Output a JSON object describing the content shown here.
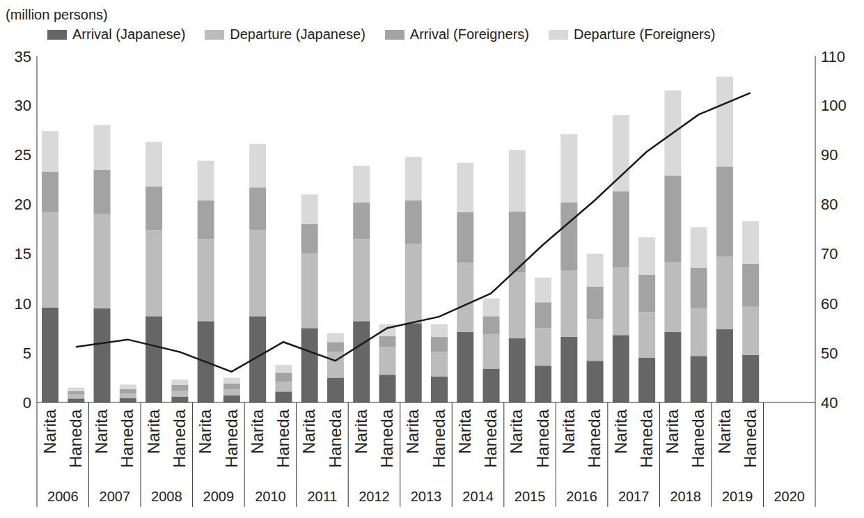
{
  "chart_data": {
    "type": "bar",
    "y_label": "(million persons)",
    "stacked": true,
    "legend": "top",
    "categories": [
      "Narita",
      "Haneda",
      "Narita",
      "Haneda",
      "Narita",
      "Haneda",
      "Narita",
      "Haneda",
      "Narita",
      "Haneda",
      "Narita",
      "Haneda",
      "Narita",
      "Haneda",
      "Narita",
      "Haneda",
      "Narita",
      "Haneda",
      "Narita",
      "Haneda",
      "Narita",
      "Haneda",
      "Narita",
      "Haneda",
      "Narita",
      "Haneda",
      "Narita",
      "Haneda",
      null,
      null
    ],
    "groups": [
      "2006",
      "2007",
      "2008",
      "2009",
      "2010",
      "2011",
      "2012",
      "2013",
      "2014",
      "2015",
      "2016",
      "2017",
      "2018",
      "2019",
      "2020"
    ],
    "series": [
      {
        "name": "Arrival (Japanese)",
        "color": "#666666",
        "values": [
          9.6,
          0.4,
          9.5,
          0.45,
          8.7,
          0.6,
          8.2,
          0.7,
          8.7,
          1.1,
          7.5,
          2.5,
          8.2,
          2.8,
          8.0,
          2.6,
          7.1,
          3.4,
          6.5,
          3.7,
          6.6,
          4.2,
          6.8,
          4.5,
          7.1,
          4.7,
          7.4,
          4.8,
          null,
          null
        ]
      },
      {
        "name": "Departure (Japanese)",
        "color": "#bcbcbc",
        "values": [
          9.6,
          0.4,
          9.5,
          0.45,
          8.7,
          0.6,
          8.3,
          0.6,
          8.7,
          1.0,
          7.5,
          2.6,
          8.3,
          2.8,
          8.0,
          2.5,
          7.0,
          3.5,
          6.6,
          3.8,
          6.7,
          4.2,
          6.8,
          4.6,
          7.1,
          4.8,
          7.3,
          4.9,
          null,
          null
        ]
      },
      {
        "name": "Arrival (Foreigners)",
        "color": "#a3a3a3",
        "values": [
          4.1,
          0.35,
          4.5,
          0.45,
          4.4,
          0.55,
          3.9,
          0.6,
          4.3,
          0.9,
          3.0,
          1.0,
          3.7,
          1.1,
          4.4,
          1.5,
          5.1,
          1.8,
          6.2,
          2.6,
          6.9,
          3.3,
          7.7,
          3.8,
          8.7,
          4.1,
          9.1,
          4.3,
          null,
          null
        ]
      },
      {
        "name": "Departure (Foreigners)",
        "color": "#d9d9d9",
        "values": [
          4.1,
          0.35,
          4.5,
          0.45,
          4.5,
          0.55,
          4.0,
          0.6,
          4.4,
          0.8,
          3.0,
          0.9,
          3.7,
          1.2,
          4.4,
          1.3,
          5.0,
          1.8,
          6.2,
          2.5,
          6.9,
          3.3,
          7.7,
          3.8,
          8.6,
          4.1,
          9.1,
          4.3,
          null,
          null
        ]
      },
      {
        "type": "line",
        "color": "#1a1a1a",
        "axis": "y2",
        "values": [
          null,
          51.2,
          null,
          52.7,
          null,
          50.2,
          null,
          46.2,
          null,
          52.2,
          null,
          48.4,
          null,
          55.0,
          null,
          57.3,
          null,
          62.0,
          null,
          71.8,
          null,
          80.8,
          null,
          90.6,
          null,
          98.1,
          null,
          102.5,
          null,
          null
        ]
      }
    ],
    "ylim": [
      0,
      35
    ],
    "yticks": [
      0,
      5,
      10,
      15,
      20,
      25,
      30,
      35
    ],
    "y2lim": [
      40,
      110
    ],
    "y2ticks": [
      40,
      50,
      60,
      70,
      80,
      90,
      100,
      110
    ]
  }
}
